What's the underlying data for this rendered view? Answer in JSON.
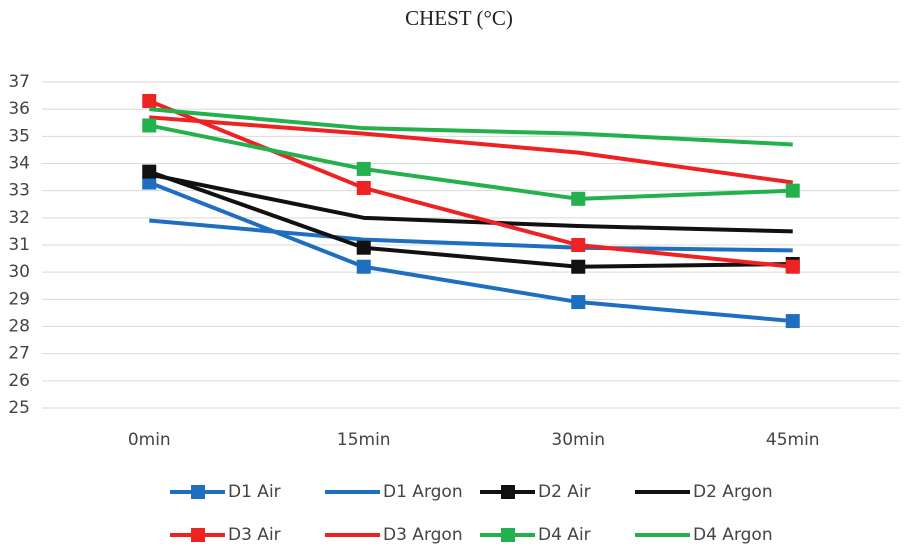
{
  "chart_data": {
    "type": "line",
    "title": "CHEST (°C)",
    "categories": [
      "0min",
      "15min",
      "30min",
      "45min"
    ],
    "ylim": [
      25,
      37
    ],
    "yticks": [
      25,
      26,
      27,
      28,
      29,
      30,
      31,
      32,
      33,
      34,
      35,
      36,
      37
    ],
    "grid": true,
    "legend": "bottom",
    "series": [
      {
        "name": "D1 Air",
        "color": "#1f6fc0",
        "marker": "square",
        "values": [
          33.3,
          30.2,
          28.9,
          28.2
        ]
      },
      {
        "name": "D1 Argon",
        "color": "#1f6fc0",
        "marker": "none",
        "values": [
          31.9,
          31.2,
          30.9,
          30.8
        ]
      },
      {
        "name": "D2 Air",
        "color": "#111111",
        "marker": "square",
        "values": [
          33.7,
          30.9,
          30.2,
          30.3
        ]
      },
      {
        "name": "D2 Argon",
        "color": "#111111",
        "marker": "none",
        "values": [
          33.6,
          32.0,
          31.7,
          31.5
        ]
      },
      {
        "name": "D3 Air",
        "color": "#ee2222",
        "marker": "square",
        "values": [
          36.3,
          33.1,
          31.0,
          30.2
        ]
      },
      {
        "name": "D3 Argon",
        "color": "#ee2222",
        "marker": "none",
        "values": [
          35.7,
          35.1,
          34.4,
          33.3
        ]
      },
      {
        "name": "D4 Air",
        "color": "#23b14d",
        "marker": "square",
        "values": [
          35.4,
          33.8,
          32.7,
          33.0
        ]
      },
      {
        "name": "D4 Argon",
        "color": "#23b14d",
        "marker": "none",
        "values": [
          36.0,
          35.3,
          35.1,
          34.7
        ]
      }
    ]
  }
}
